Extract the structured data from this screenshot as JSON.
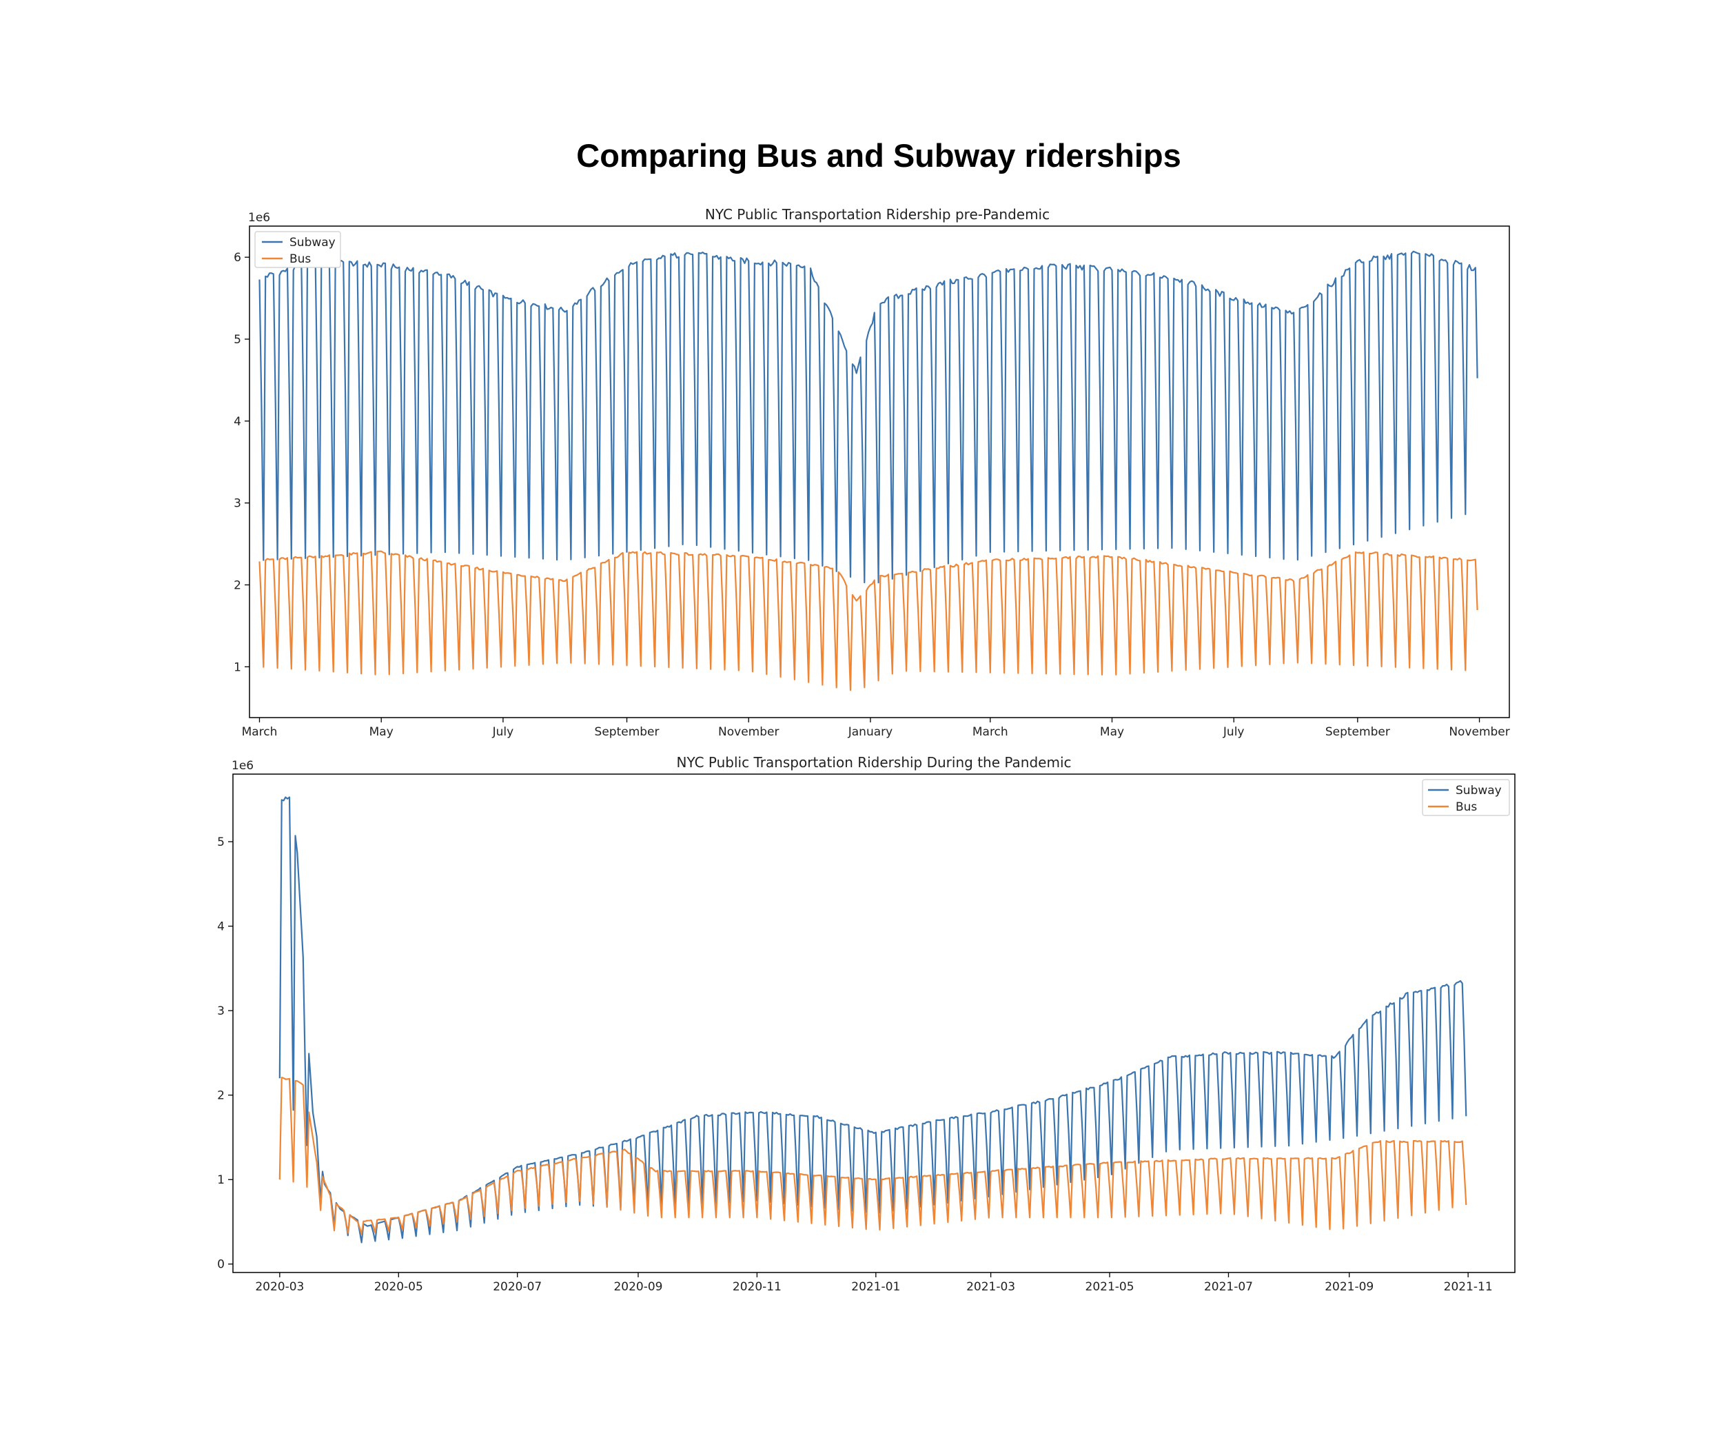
{
  "page": {
    "title": "Comparing Bus and Subway riderships"
  },
  "colors": {
    "subway": "#3a75af",
    "bus": "#ef8636",
    "axis": "#000000",
    "background": "#ffffff"
  },
  "chart_data": [
    {
      "type": "line",
      "title": "NYC Public Transportation Ridership pre-Pandemic",
      "xlabel": "",
      "ylabel": "",
      "y_offset_label": "1e6",
      "grid": false,
      "legend_position": "top-left",
      "x_range": [
        "2019-02-24",
        "2020-11-16"
      ],
      "x_ticks": [
        {
          "date": "2019-03-01",
          "label": "March"
        },
        {
          "date": "2019-05-01",
          "label": "May"
        },
        {
          "date": "2019-07-01",
          "label": "July"
        },
        {
          "date": "2019-09-01",
          "label": "September"
        },
        {
          "date": "2019-11-01",
          "label": "November"
        },
        {
          "date": "2020-01-01",
          "label": "January"
        },
        {
          "date": "2020-03-01",
          "label": "March"
        },
        {
          "date": "2020-05-01",
          "label": "May"
        },
        {
          "date": "2020-07-01",
          "label": "July"
        },
        {
          "date": "2020-09-01",
          "label": "September"
        },
        {
          "date": "2020-11-01",
          "label": "November"
        }
      ],
      "ylim": [
        0.38,
        6.38
      ],
      "y_ticks": [
        1,
        2,
        3,
        4,
        5,
        6
      ],
      "series": [
        {
          "name": "Subway",
          "start_date": "2019-03-01",
          "end_date": "2020-10-31",
          "weekday_peaks": [
            {
              "date": "2019-03-01",
              "value": 5.75
            },
            {
              "date": "2019-04-01",
              "value": 5.95
            },
            {
              "date": "2019-05-01",
              "value": 5.9
            },
            {
              "date": "2019-06-01",
              "value": 5.8
            },
            {
              "date": "2019-07-01",
              "value": 5.5
            },
            {
              "date": "2019-08-01",
              "value": 5.35
            },
            {
              "date": "2019-09-01",
              "value": 5.9
            },
            {
              "date": "2019-10-01",
              "value": 6.05
            },
            {
              "date": "2019-11-01",
              "value": 5.95
            },
            {
              "date": "2019-12-01",
              "value": 5.9
            },
            {
              "date": "2019-12-25",
              "value": 4.6
            },
            {
              "date": "2020-01-05",
              "value": 5.45
            },
            {
              "date": "2020-02-01",
              "value": 5.65
            },
            {
              "date": "2020-03-01",
              "value": 5.8
            },
            {
              "date": "2020-04-01",
              "value": 5.9
            },
            {
              "date": "2020-05-01",
              "value": 5.85
            },
            {
              "date": "2020-06-01",
              "value": 5.75
            },
            {
              "date": "2020-07-01",
              "value": 5.5
            },
            {
              "date": "2020-08-01",
              "value": 5.3
            },
            {
              "date": "2020-09-01",
              "value": 5.95
            },
            {
              "date": "2020-10-01",
              "value": 6.05
            },
            {
              "date": "2020-10-31",
              "value": 5.85
            }
          ],
          "weekend_troughs": [
            {
              "date": "2019-03-01",
              "value": 2.3
            },
            {
              "date": "2019-06-01",
              "value": 2.4
            },
            {
              "date": "2019-08-01",
              "value": 2.3
            },
            {
              "date": "2019-10-01",
              "value": 2.5
            },
            {
              "date": "2019-12-01",
              "value": 2.3
            },
            {
              "date": "2020-01-01",
              "value": 2.0
            },
            {
              "date": "2020-03-01",
              "value": 2.4
            },
            {
              "date": "2020-06-01",
              "value": 2.45
            },
            {
              "date": "2020-08-01",
              "value": 2.3
            },
            {
              "date": "2020-10-31",
              "value": 2.9
            }
          ]
        },
        {
          "name": "Bus",
          "start_date": "2019-03-01",
          "end_date": "2020-10-31",
          "weekday_peaks": [
            {
              "date": "2019-03-01",
              "value": 2.3
            },
            {
              "date": "2019-05-01",
              "value": 2.4
            },
            {
              "date": "2019-07-01",
              "value": 2.15
            },
            {
              "date": "2019-08-01",
              "value": 2.05
            },
            {
              "date": "2019-09-01",
              "value": 2.4
            },
            {
              "date": "2019-11-01",
              "value": 2.35
            },
            {
              "date": "2019-12-15",
              "value": 2.2
            },
            {
              "date": "2019-12-25",
              "value": 1.8
            },
            {
              "date": "2020-01-05",
              "value": 2.1
            },
            {
              "date": "2020-03-01",
              "value": 2.3
            },
            {
              "date": "2020-05-01",
              "value": 2.35
            },
            {
              "date": "2020-07-01",
              "value": 2.15
            },
            {
              "date": "2020-08-01",
              "value": 2.05
            },
            {
              "date": "2020-09-01",
              "value": 2.4
            },
            {
              "date": "2020-10-31",
              "value": 2.3
            }
          ],
          "weekend_troughs": [
            {
              "date": "2019-03-01",
              "value": 1.0
            },
            {
              "date": "2019-05-01",
              "value": 0.9
            },
            {
              "date": "2019-08-01",
              "value": 1.05
            },
            {
              "date": "2019-11-01",
              "value": 0.95
            },
            {
              "date": "2019-12-25",
              "value": 0.7
            },
            {
              "date": "2020-01-15",
              "value": 0.95
            },
            {
              "date": "2020-05-01",
              "value": 0.9
            },
            {
              "date": "2020-08-01",
              "value": 1.05
            },
            {
              "date": "2020-10-31",
              "value": 0.95
            }
          ]
        }
      ]
    },
    {
      "type": "line",
      "title": "NYC Public Transportation Ridership During the Pandemic",
      "xlabel": "",
      "ylabel": "",
      "y_offset_label": "1e6",
      "grid": false,
      "legend_position": "top-right",
      "x_range": [
        "2020-02-06",
        "2021-11-25"
      ],
      "x_ticks": [
        {
          "date": "2020-03-01",
          "label": "2020-03"
        },
        {
          "date": "2020-05-01",
          "label": "2020-05"
        },
        {
          "date": "2020-07-01",
          "label": "2020-07"
        },
        {
          "date": "2020-09-01",
          "label": "2020-09"
        },
        {
          "date": "2020-11-01",
          "label": "2020-11"
        },
        {
          "date": "2021-01-01",
          "label": "2021-01"
        },
        {
          "date": "2021-03-01",
          "label": "2021-03"
        },
        {
          "date": "2021-05-01",
          "label": "2021-05"
        },
        {
          "date": "2021-07-01",
          "label": "2021-07"
        },
        {
          "date": "2021-09-01",
          "label": "2021-09"
        },
        {
          "date": "2021-11-01",
          "label": "2021-11"
        }
      ],
      "ylim": [
        -0.1,
        5.8
      ],
      "y_ticks": [
        0,
        1,
        2,
        3,
        4,
        5
      ],
      "series": [
        {
          "name": "Subway",
          "start_date": "2020-03-01",
          "end_date": "2021-10-31",
          "weekday_peaks": [
            {
              "date": "2020-03-01",
              "value": 5.5
            },
            {
              "date": "2020-03-06",
              "value": 5.5
            },
            {
              "date": "2020-03-10",
              "value": 4.9
            },
            {
              "date": "2020-03-14",
              "value": 3.2
            },
            {
              "date": "2020-03-18",
              "value": 1.8
            },
            {
              "date": "2020-03-24",
              "value": 0.95
            },
            {
              "date": "2020-04-01",
              "value": 0.65
            },
            {
              "date": "2020-04-15",
              "value": 0.45
            },
            {
              "date": "2020-05-01",
              "value": 0.55
            },
            {
              "date": "2020-06-01",
              "value": 0.75
            },
            {
              "date": "2020-07-01",
              "value": 1.15
            },
            {
              "date": "2020-08-01",
              "value": 1.3
            },
            {
              "date": "2020-09-01",
              "value": 1.5
            },
            {
              "date": "2020-10-01",
              "value": 1.75
            },
            {
              "date": "2020-11-01",
              "value": 1.8
            },
            {
              "date": "2020-12-01",
              "value": 1.75
            },
            {
              "date": "2021-01-01",
              "value": 1.55
            },
            {
              "date": "2021-02-01",
              "value": 1.7
            },
            {
              "date": "2021-03-01",
              "value": 1.8
            },
            {
              "date": "2021-04-01",
              "value": 1.95
            },
            {
              "date": "2021-05-01",
              "value": 2.15
            },
            {
              "date": "2021-06-01",
              "value": 2.45
            },
            {
              "date": "2021-07-01",
              "value": 2.5
            },
            {
              "date": "2021-08-01",
              "value": 2.5
            },
            {
              "date": "2021-08-25",
              "value": 2.45
            },
            {
              "date": "2021-09-10",
              "value": 2.9
            },
            {
              "date": "2021-10-01",
              "value": 3.2
            },
            {
              "date": "2021-10-31",
              "value": 3.35
            }
          ],
          "weekend_troughs": [
            {
              "date": "2020-03-01",
              "value": 2.2
            },
            {
              "date": "2020-03-14",
              "value": 1.5
            },
            {
              "date": "2020-03-24",
              "value": 0.55
            },
            {
              "date": "2020-04-10",
              "value": 0.25
            },
            {
              "date": "2020-05-01",
              "value": 0.3
            },
            {
              "date": "2020-06-01",
              "value": 0.4
            },
            {
              "date": "2020-07-01",
              "value": 0.6
            },
            {
              "date": "2020-08-01",
              "value": 0.7
            },
            {
              "date": "2020-09-01",
              "value": 0.65
            },
            {
              "date": "2020-10-01",
              "value": 0.7
            },
            {
              "date": "2020-11-01",
              "value": 0.75
            },
            {
              "date": "2021-01-01",
              "value": 0.6
            },
            {
              "date": "2021-03-01",
              "value": 0.8
            },
            {
              "date": "2021-05-01",
              "value": 1.05
            },
            {
              "date": "2021-06-01",
              "value": 1.35
            },
            {
              "date": "2021-08-01",
              "value": 1.4
            },
            {
              "date": "2021-09-01",
              "value": 1.5
            },
            {
              "date": "2021-10-31",
              "value": 1.75
            }
          ]
        },
        {
          "name": "Bus",
          "start_date": "2020-03-01",
          "end_date": "2021-10-31",
          "weekday_peaks": [
            {
              "date": "2020-03-01",
              "value": 2.2
            },
            {
              "date": "2020-03-08",
              "value": 2.2
            },
            {
              "date": "2020-03-14",
              "value": 2.1
            },
            {
              "date": "2020-03-20",
              "value": 1.2
            },
            {
              "date": "2020-03-28",
              "value": 0.75
            },
            {
              "date": "2020-04-10",
              "value": 0.5
            },
            {
              "date": "2020-05-01",
              "value": 0.55
            },
            {
              "date": "2020-06-01",
              "value": 0.75
            },
            {
              "date": "2020-07-01",
              "value": 1.1
            },
            {
              "date": "2020-08-01",
              "value": 1.25
            },
            {
              "date": "2020-08-25",
              "value": 1.35
            },
            {
              "date": "2020-09-10",
              "value": 1.1
            },
            {
              "date": "2020-11-01",
              "value": 1.1
            },
            {
              "date": "2021-01-01",
              "value": 1.0
            },
            {
              "date": "2021-03-01",
              "value": 1.1
            },
            {
              "date": "2021-05-01",
              "value": 1.2
            },
            {
              "date": "2021-07-01",
              "value": 1.25
            },
            {
              "date": "2021-08-25",
              "value": 1.25
            },
            {
              "date": "2021-09-15",
              "value": 1.45
            },
            {
              "date": "2021-10-31",
              "value": 1.45
            }
          ],
          "weekend_troughs": [
            {
              "date": "2020-03-01",
              "value": 1.0
            },
            {
              "date": "2020-03-14",
              "value": 0.95
            },
            {
              "date": "2020-03-28",
              "value": 0.4
            },
            {
              "date": "2020-04-10",
              "value": 0.35
            },
            {
              "date": "2020-05-01",
              "value": 0.4
            },
            {
              "date": "2020-06-01",
              "value": 0.5
            },
            {
              "date": "2020-07-01",
              "value": 0.65
            },
            {
              "date": "2020-08-01",
              "value": 0.75
            },
            {
              "date": "2020-09-10",
              "value": 0.55
            },
            {
              "date": "2020-11-01",
              "value": 0.55
            },
            {
              "date": "2021-01-01",
              "value": 0.4
            },
            {
              "date": "2021-03-01",
              "value": 0.55
            },
            {
              "date": "2021-05-01",
              "value": 0.55
            },
            {
              "date": "2021-07-01",
              "value": 0.6
            },
            {
              "date": "2021-08-25",
              "value": 0.4
            },
            {
              "date": "2021-10-31",
              "value": 0.7
            }
          ]
        }
      ]
    }
  ]
}
